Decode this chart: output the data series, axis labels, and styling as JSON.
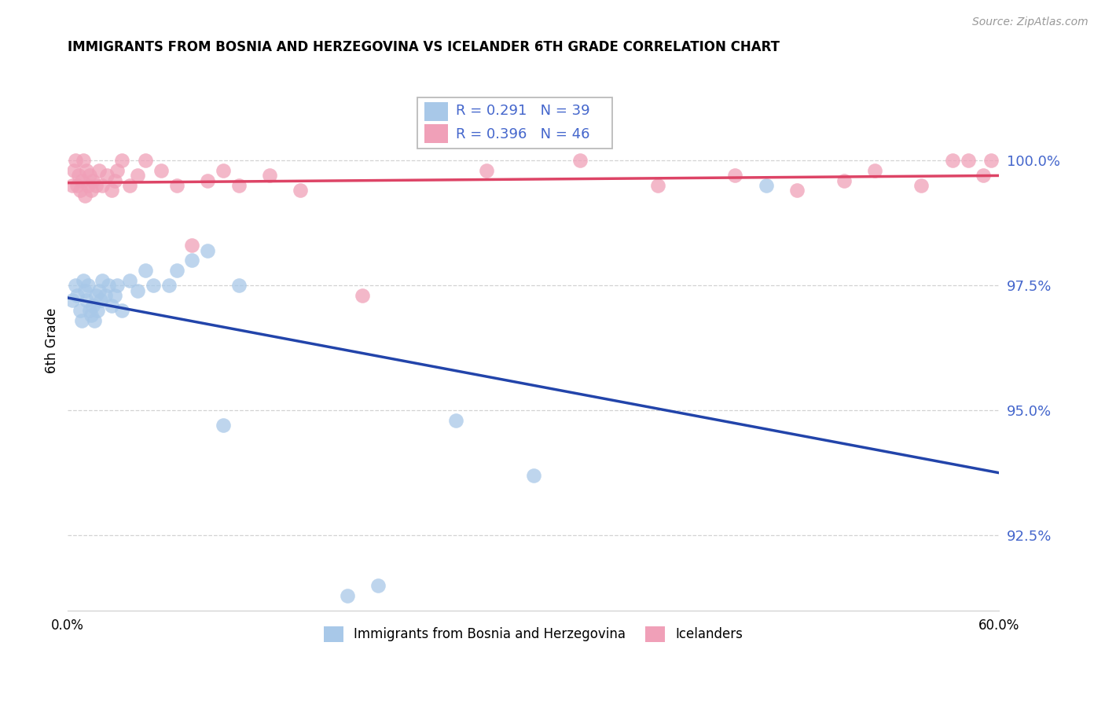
{
  "title": "IMMIGRANTS FROM BOSNIA AND HERZEGOVINA VS ICELANDER 6TH GRADE CORRELATION CHART",
  "source": "Source: ZipAtlas.com",
  "ylabel": "6th Grade",
  "yticks": [
    92.5,
    95.0,
    97.5,
    100.0
  ],
  "ytick_labels": [
    "92.5%",
    "95.0%",
    "97.5%",
    "100.0%"
  ],
  "xlim": [
    0.0,
    60.0
  ],
  "ylim": [
    91.0,
    101.8
  ],
  "blue_scatter_color": "#a8c8e8",
  "pink_scatter_color": "#f0a0b8",
  "blue_line_color": "#2244aa",
  "pink_line_color": "#dd4466",
  "annotation_color": "#4466cc",
  "legend_blue_text": "Immigrants from Bosnia and Herzegovina",
  "legend_pink_text": "Icelanders",
  "r_blue": "0.291",
  "n_blue": "39",
  "r_pink": "0.396",
  "n_pink": "46",
  "blue_x": [
    0.3,
    0.5,
    0.6,
    0.8,
    0.9,
    1.0,
    1.1,
    1.2,
    1.3,
    1.4,
    1.5,
    1.6,
    1.7,
    1.8,
    1.9,
    2.0,
    2.1,
    2.2,
    2.4,
    2.6,
    2.8,
    3.0,
    3.2,
    3.5,
    4.0,
    4.5,
    5.0,
    5.5,
    6.5,
    7.0,
    8.0,
    9.0,
    10.0,
    11.0,
    18.0,
    20.0,
    25.0,
    30.0,
    45.0
  ],
  "blue_y": [
    97.2,
    97.5,
    97.3,
    97.0,
    96.8,
    97.6,
    97.4,
    97.2,
    97.5,
    97.0,
    96.9,
    97.1,
    96.8,
    97.3,
    97.0,
    97.4,
    97.2,
    97.6,
    97.3,
    97.5,
    97.1,
    97.3,
    97.5,
    97.0,
    97.6,
    97.4,
    97.8,
    97.5,
    97.5,
    97.8,
    98.0,
    98.2,
    94.7,
    97.5,
    91.3,
    91.5,
    94.8,
    93.7,
    99.5
  ],
  "pink_x": [
    0.3,
    0.4,
    0.5,
    0.6,
    0.7,
    0.8,
    0.9,
    1.0,
    1.1,
    1.2,
    1.3,
    1.4,
    1.5,
    1.6,
    1.8,
    2.0,
    2.2,
    2.5,
    2.8,
    3.0,
    3.2,
    3.5,
    4.0,
    4.5,
    5.0,
    6.0,
    7.0,
    8.0,
    9.0,
    10.0,
    11.0,
    13.0,
    15.0,
    19.0,
    27.0,
    33.0,
    38.0,
    43.0,
    47.0,
    50.0,
    52.0,
    55.0,
    57.0,
    58.0,
    59.0,
    59.5
  ],
  "pink_y": [
    99.5,
    99.8,
    100.0,
    99.5,
    99.7,
    99.4,
    99.6,
    100.0,
    99.3,
    99.8,
    99.5,
    99.7,
    99.4,
    99.6,
    99.5,
    99.8,
    99.5,
    99.7,
    99.4,
    99.6,
    99.8,
    100.0,
    99.5,
    99.7,
    100.0,
    99.8,
    99.5,
    98.3,
    99.6,
    99.8,
    99.5,
    99.7,
    99.4,
    97.3,
    99.8,
    100.0,
    99.5,
    99.7,
    99.4,
    99.6,
    99.8,
    99.5,
    100.0,
    100.0,
    99.7,
    100.0
  ]
}
